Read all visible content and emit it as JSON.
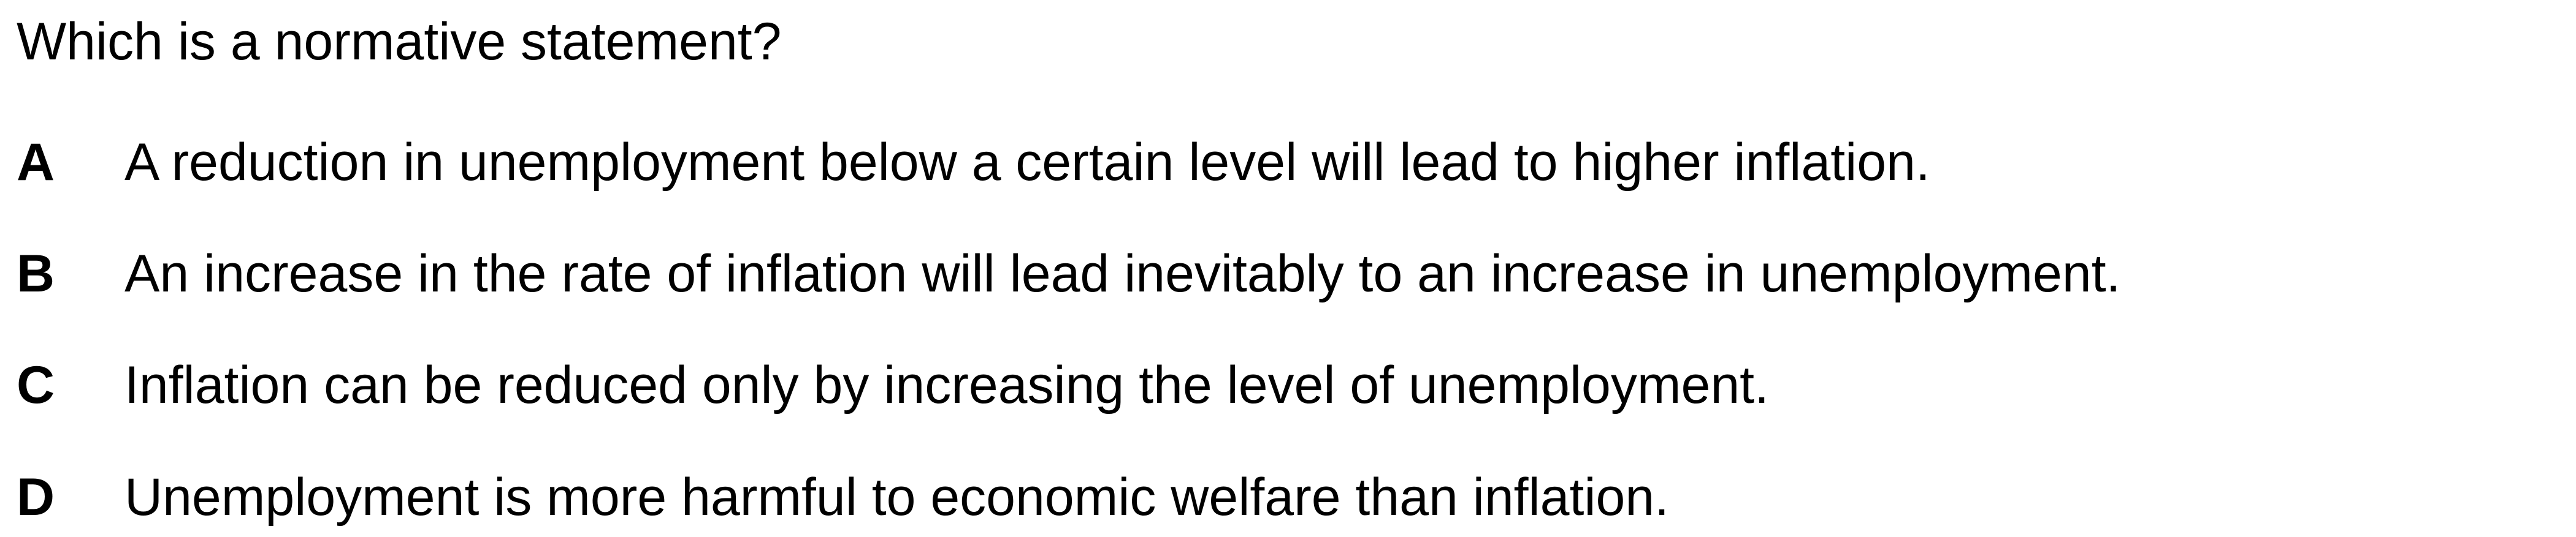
{
  "question": {
    "text": "Which is a normative statement?"
  },
  "options": [
    {
      "letter": "A",
      "text": "A reduction in unemployment below a certain level will lead to higher inflation."
    },
    {
      "letter": "B",
      "text": "An increase in the rate of inflation will lead inevitably to an increase in unemployment."
    },
    {
      "letter": "C",
      "text": "Inflation can be reduced only by increasing the level of unemployment."
    },
    {
      "letter": "D",
      "text": "Unemployment is more harmful to economic welfare than inflation."
    }
  ]
}
